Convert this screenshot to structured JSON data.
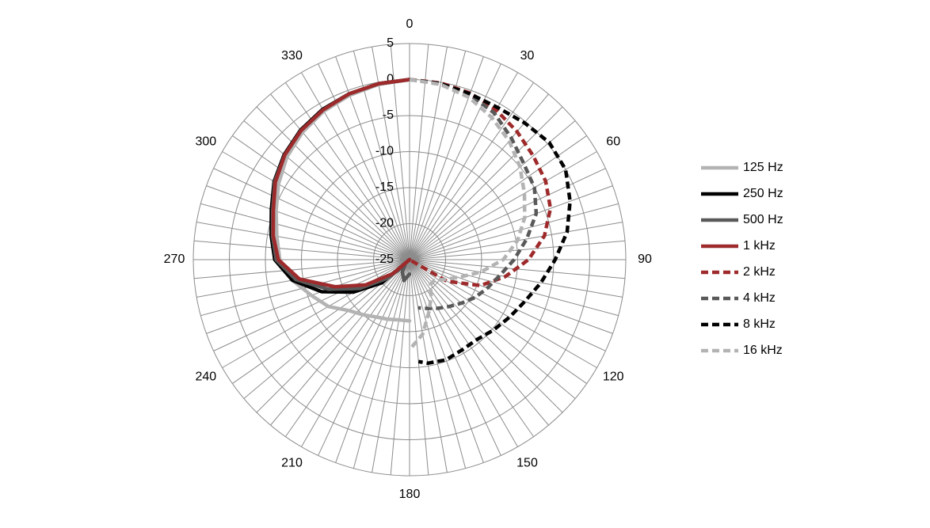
{
  "chart_data": {
    "type": "polar-line",
    "xlim": [
      0,
      360
    ],
    "xticks": [
      0,
      30,
      60,
      90,
      120,
      150,
      180,
      210,
      240,
      270,
      300,
      330
    ],
    "angular_grid_step": 5,
    "ylim": [
      -25,
      5
    ],
    "yticks": [
      -25,
      -20,
      -15,
      -10,
      -5,
      0,
      5
    ],
    "grid": true,
    "legend": "right",
    "series": [
      {
        "name": "125 Hz",
        "color": "#b3b3b3",
        "style": "solid",
        "theta": [
          360,
          350,
          340,
          330,
          320,
          310,
          300,
          290,
          280,
          270,
          260,
          250,
          240,
          230,
          220,
          210,
          200,
          190,
          180
        ],
        "values": [
          0,
          -0.3,
          -0.7,
          -1.2,
          -1.9,
          -2.8,
          -4,
          -5.3,
          -6.3,
          -7,
          -8.5,
          -10.5,
          -12,
          -14,
          -15,
          -15.8,
          -16.2,
          -16.5,
          -16.5
        ]
      },
      {
        "name": "250 Hz",
        "color": "#000000",
        "style": "solid",
        "theta": [
          360,
          350,
          340,
          330,
          320,
          310,
          300,
          290,
          280,
          270,
          260,
          250,
          240,
          230,
          220
        ],
        "values": [
          0,
          -0.2,
          -0.5,
          -0.9,
          -1.5,
          -2.3,
          -3.3,
          -4.6,
          -5.5,
          -6.3,
          -8.5,
          -12,
          -16,
          -20,
          -25
        ]
      },
      {
        "name": "500 Hz",
        "color": "#595959",
        "style": "solid",
        "theta": [
          360,
          350,
          340,
          330,
          320,
          310,
          300,
          290,
          280,
          270,
          260,
          250,
          240,
          230,
          220,
          210,
          195,
          180
        ],
        "values": [
          0,
          -0.2,
          -0.5,
          -1,
          -1.6,
          -2.4,
          -3.4,
          -4.8,
          -5.7,
          -6.5,
          -9,
          -13,
          -17,
          -21,
          -24,
          -23,
          -22,
          -23
        ]
      },
      {
        "name": "1 kHz",
        "color": "#9e2a2b",
        "style": "solid",
        "theta": [
          360,
          350,
          340,
          330,
          320,
          310,
          300,
          290,
          280,
          270,
          260,
          250,
          240,
          230,
          220
        ],
        "values": [
          0,
          -0.2,
          -0.5,
          -1,
          -1.6,
          -2.4,
          -3.5,
          -4.9,
          -5.8,
          -6.8,
          -9.5,
          -14,
          -18,
          -22,
          -25
        ]
      },
      {
        "name": "2 kHz",
        "color": "#9e2a2b",
        "style": "dashed",
        "theta": [
          0,
          10,
          20,
          30,
          40,
          50,
          60,
          70,
          80,
          90,
          100,
          110,
          120,
          130
        ],
        "values": [
          0,
          -0.1,
          -0.4,
          -1,
          -1.8,
          -2.6,
          -3.2,
          -4.2,
          -6,
          -8.5,
          -11.5,
          -14.5,
          -19,
          -25
        ]
      },
      {
        "name": "4 kHz",
        "color": "#595959",
        "style": "dashed",
        "theta": [
          0,
          10,
          20,
          30,
          40,
          50,
          60,
          70,
          80,
          90,
          100,
          110,
          120,
          130,
          140,
          150,
          160,
          170
        ],
        "values": [
          0,
          -0.2,
          -0.6,
          -1.5,
          -3,
          -4.3,
          -5,
          -6.3,
          -8.5,
          -10.5,
          -12.3,
          -13.5,
          -14.5,
          -15.6,
          -16.5,
          -17.2,
          -17.8,
          -18.2
        ]
      },
      {
        "name": "8 kHz",
        "color": "#000000",
        "style": "dashed",
        "theta": [
          0,
          10,
          20,
          30,
          40,
          50,
          60,
          70,
          80,
          90,
          100,
          110,
          120,
          130,
          140,
          150,
          160,
          170,
          175
        ],
        "values": [
          0,
          -0.2,
          -0.5,
          -0.6,
          -0.2,
          0.3,
          0,
          -1.3,
          -2.8,
          -4.8,
          -6.5,
          -8,
          -9,
          -9.8,
          -10.5,
          -10.5,
          -10.2,
          -10.4,
          -10.8
        ]
      },
      {
        "name": "16 kHz",
        "color": "#b3b3b3",
        "style": "dashed",
        "theta": [
          0,
          10,
          20,
          30,
          40,
          50,
          60,
          70,
          80,
          90,
          100,
          110,
          120,
          130,
          140,
          150,
          160,
          170,
          180
        ],
        "values": [
          0,
          -0.3,
          -1,
          -2.2,
          -3.5,
          -5,
          -6.6,
          -8,
          -9.8,
          -12,
          -15,
          -17.8,
          -19.5,
          -20.5,
          -20.5,
          -19,
          -17.2,
          -14.5,
          -12.5
        ]
      }
    ]
  }
}
